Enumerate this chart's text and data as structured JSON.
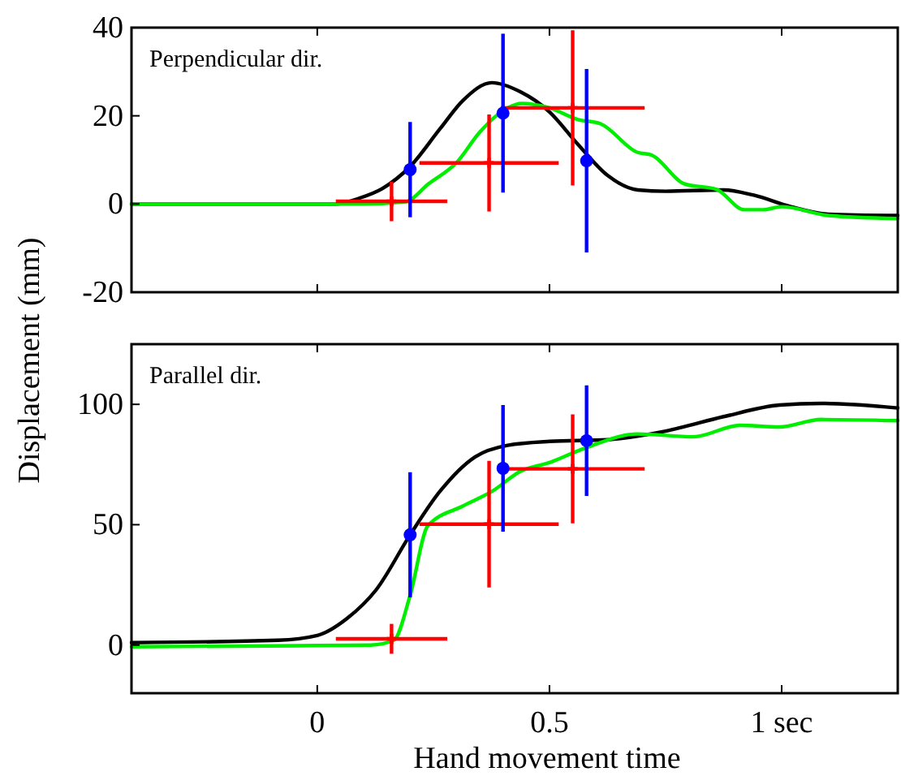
{
  "chart_data": [
    {
      "type": "line",
      "ylabel": "Displacement (mm)",
      "annotations": [
        "Perpendicular dir."
      ],
      "xlim": [
        -0.4,
        1.25
      ],
      "ylim": [
        -20,
        40
      ],
      "yticks": [
        -20,
        0,
        20,
        40
      ],
      "tick_labels": "y",
      "grid": false,
      "line_style": "solid",
      "series": [
        {
          "color": "#000000",
          "x": [
            -0.4,
            0.04,
            0.09,
            0.14,
            0.2,
            0.264,
            0.314,
            0.376,
            0.438,
            0.5,
            0.56,
            0.625,
            0.69,
            0.75,
            0.875,
            0.94,
            1.02,
            1.1,
            1.25
          ],
          "values": [
            0,
            0,
            1.3,
            3.5,
            8.5,
            17,
            23.5,
            27.5,
            25.4,
            20.9,
            13.7,
            6.5,
            3.2,
            2.9,
            3.2,
            2,
            -0.6,
            -2.3,
            -2.6
          ]
        },
        {
          "color": "#00ee00",
          "x": [
            -0.4,
            0.1,
            0.19,
            0.24,
            0.3,
            0.35,
            0.41,
            0.44,
            0.5,
            0.56,
            0.61,
            0.69,
            0.72,
            0.79,
            0.86,
            0.92,
            0.96,
            1.0,
            1.1,
            1.25
          ],
          "values": [
            0,
            0,
            0.5,
            4.6,
            9.4,
            16.3,
            21.8,
            22.8,
            21.8,
            19.2,
            18.2,
            11.7,
            11.1,
            4.6,
            3.3,
            -1.3,
            -1.3,
            -0.6,
            -2.6,
            -3.3
          ]
        },
        {
          "type": "scatter",
          "color": "#ff0000",
          "marker": "cross",
          "x": [
            0.16,
            0.37,
            0.55
          ],
          "values": [
            0.6,
            9.3,
            21.8
          ],
          "errors": [
            4.5,
            11,
            17.6
          ],
          "xerrors": [
            0.12,
            0.15,
            0.155
          ]
        },
        {
          "type": "scatter",
          "color": "#0000ff",
          "marker": "circle",
          "x": [
            0.2,
            0.4,
            0.58
          ],
          "values": [
            7.8,
            20.6,
            9.8
          ],
          "errors": [
            10.8,
            18,
            20.8
          ]
        }
      ]
    },
    {
      "type": "line",
      "xlabel": "Hand movement time",
      "annotations": [
        "Parallel dir."
      ],
      "xlim": [
        -0.4,
        1.25
      ],
      "ylim": [
        -20,
        125
      ],
      "xticks": [
        0,
        0.5,
        {
          "value": 1,
          "label": "1 sec"
        }
      ],
      "yticks": [
        0,
        50,
        100
      ],
      "grid": false,
      "line_style": "solid",
      "series": [
        {
          "color": "#000000",
          "x": [
            -0.4,
            -0.085,
            0,
            0.065,
            0.127,
            0.2,
            0.264,
            0.34,
            0.41,
            0.5,
            0.625,
            0.75,
            0.875,
            0.995,
            1.085,
            1.25
          ],
          "values": [
            1,
            2,
            4,
            11.2,
            23,
            45.8,
            63.8,
            78.2,
            83,
            84.6,
            85.3,
            88.9,
            94.9,
            99.7,
            100.4,
            98.5
          ]
        },
        {
          "color": "#00ee00",
          "x": [
            -0.4,
            0,
            0.115,
            0.165,
            0.2,
            0.238,
            0.314,
            0.376,
            0.438,
            0.5,
            0.575,
            0.69,
            0.81,
            0.91,
            0.995,
            1.085,
            1.25
          ],
          "values": [
            -0.7,
            -0.2,
            0,
            2,
            20.7,
            49.5,
            57.8,
            63.8,
            72.2,
            75.8,
            81.7,
            87.7,
            86.5,
            91.3,
            90.6,
            93.7,
            93.2
          ]
        },
        {
          "type": "scatter",
          "color": "#ff0000",
          "marker": "cross",
          "x": [
            0.16,
            0.37,
            0.55
          ],
          "values": [
            2.6,
            50.2,
            73.2
          ],
          "errors": [
            6.2,
            26.3,
            22.6
          ],
          "xerrors": [
            0.12,
            0.15,
            0.155
          ]
        },
        {
          "type": "scatter",
          "color": "#0000ff",
          "marker": "circle",
          "x": [
            0.2,
            0.4,
            0.58
          ],
          "values": [
            45.8,
            73.4,
            84.9
          ],
          "errors": [
            26,
            26.3,
            23
          ]
        }
      ]
    }
  ]
}
